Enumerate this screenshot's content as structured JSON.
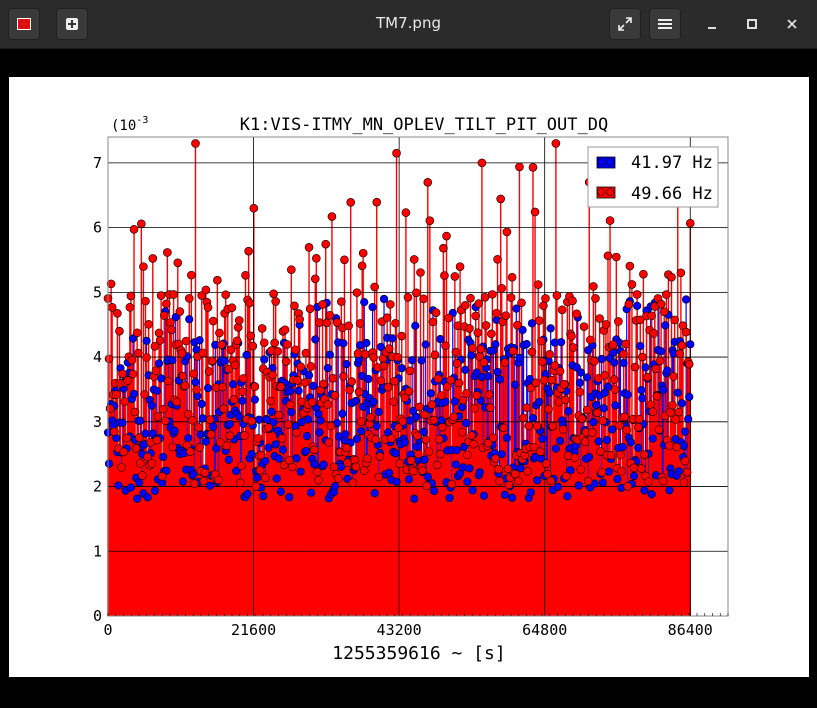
{
  "window": {
    "title": "TM7.png",
    "icons": {
      "app": "image-app-icon",
      "new_tab": "plus-icon",
      "fullscreen": "expand-icon",
      "menu": "hamburger-icon",
      "minimize": "minimize-icon",
      "maximize": "maximize-icon",
      "close": "close-icon"
    }
  },
  "chart_data": {
    "type": "scatter",
    "style": "stem (impulses) with circle markers",
    "title": "K1:VIS-ITMY_MN_OPLEV_TILT_PIT_OUT_DQ",
    "xlabel": "1255359616 ~ [s]",
    "ylabel": "",
    "y_multiplier_label": "(10",
    "y_multiplier_exp": "-3",
    "xlim": [
      0,
      92000
    ],
    "ylim": [
      0,
      7.4
    ],
    "xticks": [
      "0",
      "21600",
      "43200",
      "64800",
      "86400"
    ],
    "yticks": [
      "0",
      "1",
      "2",
      "3",
      "4",
      "5",
      "6",
      "7"
    ],
    "grid": true,
    "legend_position": "top-right",
    "series": [
      {
        "name": "41.97 Hz",
        "color": "#0000ff",
        "typical_range": [
          1.8,
          4.3
        ],
        "max": 4.9,
        "x_range": [
          0,
          86400
        ]
      },
      {
        "name": "49.66 Hz",
        "color": "#ff0000",
        "typical_range": [
          2.0,
          5.0
        ],
        "max": 7.3,
        "x_range": [
          0,
          86400
        ]
      }
    ],
    "highlight_points_49_66": [
      {
        "x": 13000,
        "y": 7.3
      },
      {
        "x": 21600,
        "y": 6.3
      },
      {
        "x": 42800,
        "y": 7.15
      },
      {
        "x": 47500,
        "y": 6.7
      },
      {
        "x": 55500,
        "y": 7.0
      },
      {
        "x": 66500,
        "y": 7.3
      },
      {
        "x": 84500,
        "y": 6.4
      }
    ]
  }
}
